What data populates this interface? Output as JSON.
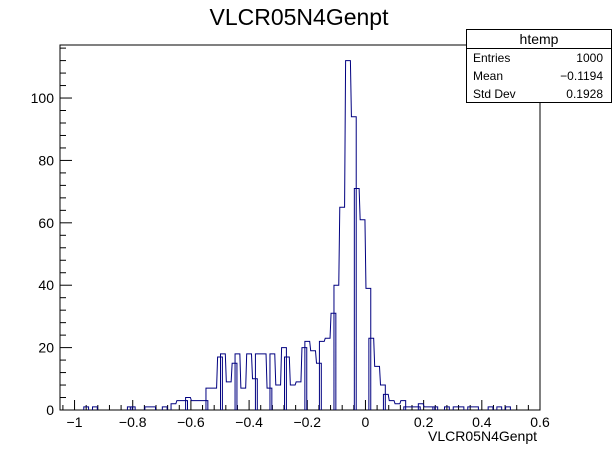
{
  "chart_data": {
    "type": "histogram",
    "title": "VLCR05N4Genpt",
    "xlabel": "VLCR05N4Genpt",
    "ylabel": "",
    "xlim": [
      -1.05,
      0.6
    ],
    "ylim": [
      0,
      117
    ],
    "x_ticks": [
      -1,
      -0.8,
      -0.6,
      -0.4,
      -0.2,
      0,
      0.2,
      0.4,
      0.6
    ],
    "x_tick_labels": [
      "−1",
      "−0.8",
      "−0.6",
      "−0.4",
      "−0.2",
      "0",
      "0.2",
      "0.4",
      "0.6"
    ],
    "y_ticks": [
      0,
      20,
      40,
      60,
      80,
      100
    ],
    "y_tick_labels": [
      "0",
      "20",
      "40",
      "60",
      "80",
      "100"
    ],
    "bin_width": 0.0165,
    "x": [
      -0.96,
      -0.93,
      -0.81,
      -0.8,
      -0.75,
      -0.73,
      -0.69,
      -0.66,
      -0.64,
      -0.62,
      -0.61,
      -0.59,
      -0.57,
      -0.55,
      -0.54,
      -0.52,
      -0.5,
      -0.49,
      -0.47,
      -0.45,
      -0.44,
      -0.42,
      -0.4,
      -0.38,
      -0.37,
      -0.35,
      -0.33,
      -0.32,
      -0.3,
      -0.28,
      -0.27,
      -0.25,
      -0.23,
      -0.21,
      -0.2,
      -0.18,
      -0.16,
      -0.15,
      -0.13,
      -0.11,
      -0.1,
      -0.08,
      -0.06,
      -0.04,
      -0.03,
      -0.01,
      0.01,
      0.02,
      0.04,
      0.06,
      0.07,
      0.09,
      0.11,
      0.13,
      0.14,
      0.16,
      0.18,
      0.19,
      0.21,
      0.23,
      0.24,
      0.28,
      0.31,
      0.33,
      0.36,
      0.38,
      0.43,
      0.46,
      0.49
    ],
    "values": [
      1,
      1,
      1,
      1,
      1,
      1,
      1,
      2,
      3,
      3,
      4,
      3,
      3,
      3,
      7,
      7,
      17,
      18,
      9,
      15,
      18,
      7,
      18,
      10,
      18,
      18,
      7,
      18,
      8,
      20,
      17,
      8,
      9,
      20,
      22,
      19,
      15,
      22,
      23,
      31,
      40,
      65,
      112,
      94,
      71,
      61,
      39,
      23,
      14,
      8,
      5,
      3,
      2,
      3,
      1,
      1,
      1,
      2,
      1,
      1,
      1,
      1,
      1,
      1,
      1,
      1,
      1,
      1,
      1
    ]
  },
  "stats": {
    "name": "htemp",
    "rows": [
      {
        "label": "Entries",
        "value": "1000"
      },
      {
        "label": "Mean",
        "value": "−0.1194"
      },
      {
        "label": "Std Dev",
        "value": "0.1928"
      }
    ]
  },
  "colors": {
    "line": "#000080",
    "axis": "#000000"
  }
}
